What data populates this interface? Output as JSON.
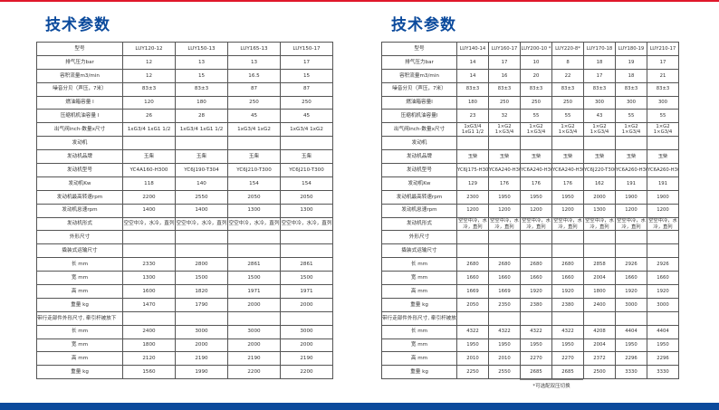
{
  "colors": {
    "accent_red": "#e0182b",
    "brand_blue": "#0b4a9c"
  },
  "left": {
    "title": "技术参数",
    "rows": [
      [
        "型号",
        "LUY120-12",
        "LUY150-13",
        "LUY165-13",
        "LUY150-17"
      ],
      [
        "排气压力bar",
        "12",
        "13",
        "13",
        "17"
      ],
      [
        "容积流量m3/min",
        "12",
        "15",
        "16.5",
        "15"
      ],
      [
        "噪音分贝（声压，7米）",
        "83±3",
        "83±3",
        "87",
        "87"
      ],
      [
        "燃油箱容量 l",
        "120",
        "180",
        "250",
        "250"
      ],
      [
        "压缩机机油容量 l",
        "26",
        "28",
        "45",
        "45"
      ],
      [
        "出气阀inch-数量x尺寸",
        "1xG3/4 1xG1 1/2",
        "1xG3/4 1xG1 1/2",
        "1xG3/4 1xG2",
        "1xG3/4 1xG2"
      ],
      [
        "发动机",
        "",
        "",
        "",
        ""
      ],
      [
        "发动机品牌",
        "玉柴",
        "玉柴",
        "玉柴",
        "玉柴"
      ],
      [
        "发动机型号",
        "YC4A160-H300",
        "YC6J190-T304",
        "YC6J210-T300",
        "YC6J210-T300"
      ],
      [
        "发动机Kw",
        "118",
        "140",
        "154",
        "154"
      ],
      [
        "发动机最高转速rpm",
        "2200",
        "2550",
        "2050",
        "2050"
      ],
      [
        "发动机怠速rpm",
        "1400",
        "1400",
        "1300",
        "1300"
      ],
      [
        "发动机形式",
        "空空中冷，水冷，直列",
        "空空中冷，水冷，直列",
        "空空中冷，水冷，直列",
        "空空中冷，水冷，直列"
      ],
      [
        "外形尺寸",
        "",
        "",
        "",
        ""
      ],
      [
        "撬装式运输尺寸",
        "",
        "",
        "",
        ""
      ],
      [
        "长 mm",
        "2330",
        "2800",
        "2861",
        "2861"
      ],
      [
        "宽 mm",
        "1300",
        "1500",
        "1500",
        "1500"
      ],
      [
        "高 mm",
        "1600",
        "1820",
        "1971",
        "1971"
      ],
      [
        "重量 kg",
        "1470",
        "1790",
        "2000",
        "2000"
      ],
      [
        "带行走部件外形尺寸, 牵引杆被放下",
        "",
        "",
        "",
        ""
      ],
      [
        "长 mm",
        "2400",
        "3000",
        "3000",
        "3000"
      ],
      [
        "宽 mm",
        "1800",
        "2000",
        "2000",
        "2000"
      ],
      [
        "高 mm",
        "2120",
        "2190",
        "2190",
        "2190"
      ],
      [
        "重量 kg",
        "1560",
        "1990",
        "2200",
        "2200"
      ]
    ]
  },
  "right": {
    "title": "技术参数",
    "rows": [
      [
        "型号",
        "LUY140-14",
        "LUY160-17",
        "LUY200-10 *",
        "LUY220-8*",
        "LUY170-18",
        "LUY180-19",
        "LUY210-17"
      ],
      [
        "排气压力bar",
        "14",
        "17",
        "10",
        "8",
        "18",
        "19",
        "17"
      ],
      [
        "容积流量m3/min",
        "14",
        "16",
        "20",
        "22",
        "17",
        "18",
        "21"
      ],
      [
        "噪音分贝（声压，7米）",
        "83±3",
        "83±3",
        "83±3",
        "83±3",
        "83±3",
        "83±3",
        "83±3"
      ],
      [
        "燃油箱容量l",
        "180",
        "250",
        "250",
        "250",
        "300",
        "300",
        "300"
      ],
      [
        "压缩机机油容量l",
        "23",
        "32",
        "55",
        "55",
        "43",
        "55",
        "55"
      ],
      [
        "出气阀inch-数量x尺寸",
        "1xG3/4 1xG1 1/2",
        "1×G2 1×G3/4",
        "1×G2 1×G3/4",
        "1×G2 1×G3/4",
        "1×G2 1×G3/4",
        "1×G2 1×G3/4",
        "1×G2 1×G3/4"
      ],
      [
        "发动机",
        "",
        "",
        "",
        "",
        "",
        "",
        ""
      ],
      [
        "发动机品牌",
        "玉柴",
        "玉柴",
        "玉柴",
        "玉柴",
        "玉柴",
        "玉柴",
        "玉柴"
      ],
      [
        "发动机型号",
        "YC6J175-H301",
        "YC6A240-H301",
        "YC6A240-H301",
        "YC6A240-H301",
        "YC6J220-T300",
        "YC6A260-H300",
        "YC6A260-H300"
      ],
      [
        "发动机Kw",
        "129",
        "176",
        "176",
        "176",
        "162",
        "191",
        "191"
      ],
      [
        "发动机最高转速rpm",
        "2300",
        "1950",
        "1950",
        "1950",
        "2000",
        "1900",
        "1900"
      ],
      [
        "发动机怠速rpm",
        "1200",
        "1200",
        "1200",
        "1200",
        "1300",
        "1200",
        "1200"
      ],
      [
        "发动机形式",
        "空空中冷，水冷，直列",
        "空空中冷，水冷，直列",
        "空空中冷，水冷，直列",
        "空空中冷，水冷，直列",
        "空空中冷，水冷，直列",
        "空空中冷，水冷，直列",
        "空空中冷，水冷，直列"
      ],
      [
        "外形尺寸",
        "",
        "",
        "",
        "",
        "",
        "",
        ""
      ],
      [
        "撬装式运输尺寸",
        "",
        "",
        "",
        "",
        "",
        "",
        ""
      ],
      [
        "长 mm",
        "2680",
        "2680",
        "2680",
        "2680",
        "2858",
        "2926",
        "2926"
      ],
      [
        "宽 mm",
        "1660",
        "1660",
        "1660",
        "1660",
        "2004",
        "1660",
        "1660"
      ],
      [
        "高 mm",
        "1669",
        "1669",
        "1920",
        "1920",
        "1800",
        "1920",
        "1920"
      ],
      [
        "重量 kg",
        "2050",
        "2350",
        "2380",
        "2380",
        "2400",
        "3000",
        "3000"
      ],
      [
        "带行走部件外形尺寸, 牵引杆被放下",
        "",
        "",
        "",
        "",
        "",
        "",
        ""
      ],
      [
        "长 mm",
        "4322",
        "4322",
        "4322",
        "4322",
        "4208",
        "4404",
        "4404"
      ],
      [
        "宽 mm",
        "1950",
        "1950",
        "1950",
        "1950",
        "2004",
        "1950",
        "1950"
      ],
      [
        "高 mm",
        "2010",
        "2010",
        "2270",
        "2270",
        "2372",
        "2296",
        "2296"
      ],
      [
        "重量 kg",
        "2250",
        "2550",
        "2685",
        "2685",
        "2500",
        "3330",
        "3330"
      ]
    ],
    "footnote": "*可选配双压切换"
  }
}
